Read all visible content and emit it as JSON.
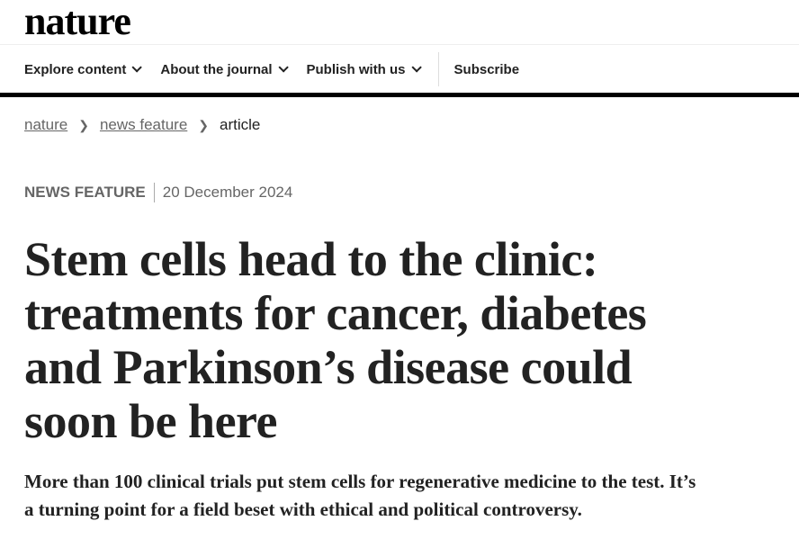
{
  "logo": "nature",
  "nav": {
    "items": [
      {
        "label": "Explore content"
      },
      {
        "label": "About the journal"
      },
      {
        "label": "Publish with us"
      }
    ],
    "subscribe": "Subscribe"
  },
  "breadcrumb": [
    "nature",
    "news feature",
    "article"
  ],
  "article": {
    "type": "NEWS FEATURE",
    "date": "20 December 2024",
    "title": "Stem cells head to the clinic: treatments for cancer, diabetes and Parkinson’s disease could soon be here",
    "standfirst": "More than 100 clinical trials put stem cells for regenerative medicine to the test. It’s a turning point for a field beset with ethical and political controversy."
  }
}
